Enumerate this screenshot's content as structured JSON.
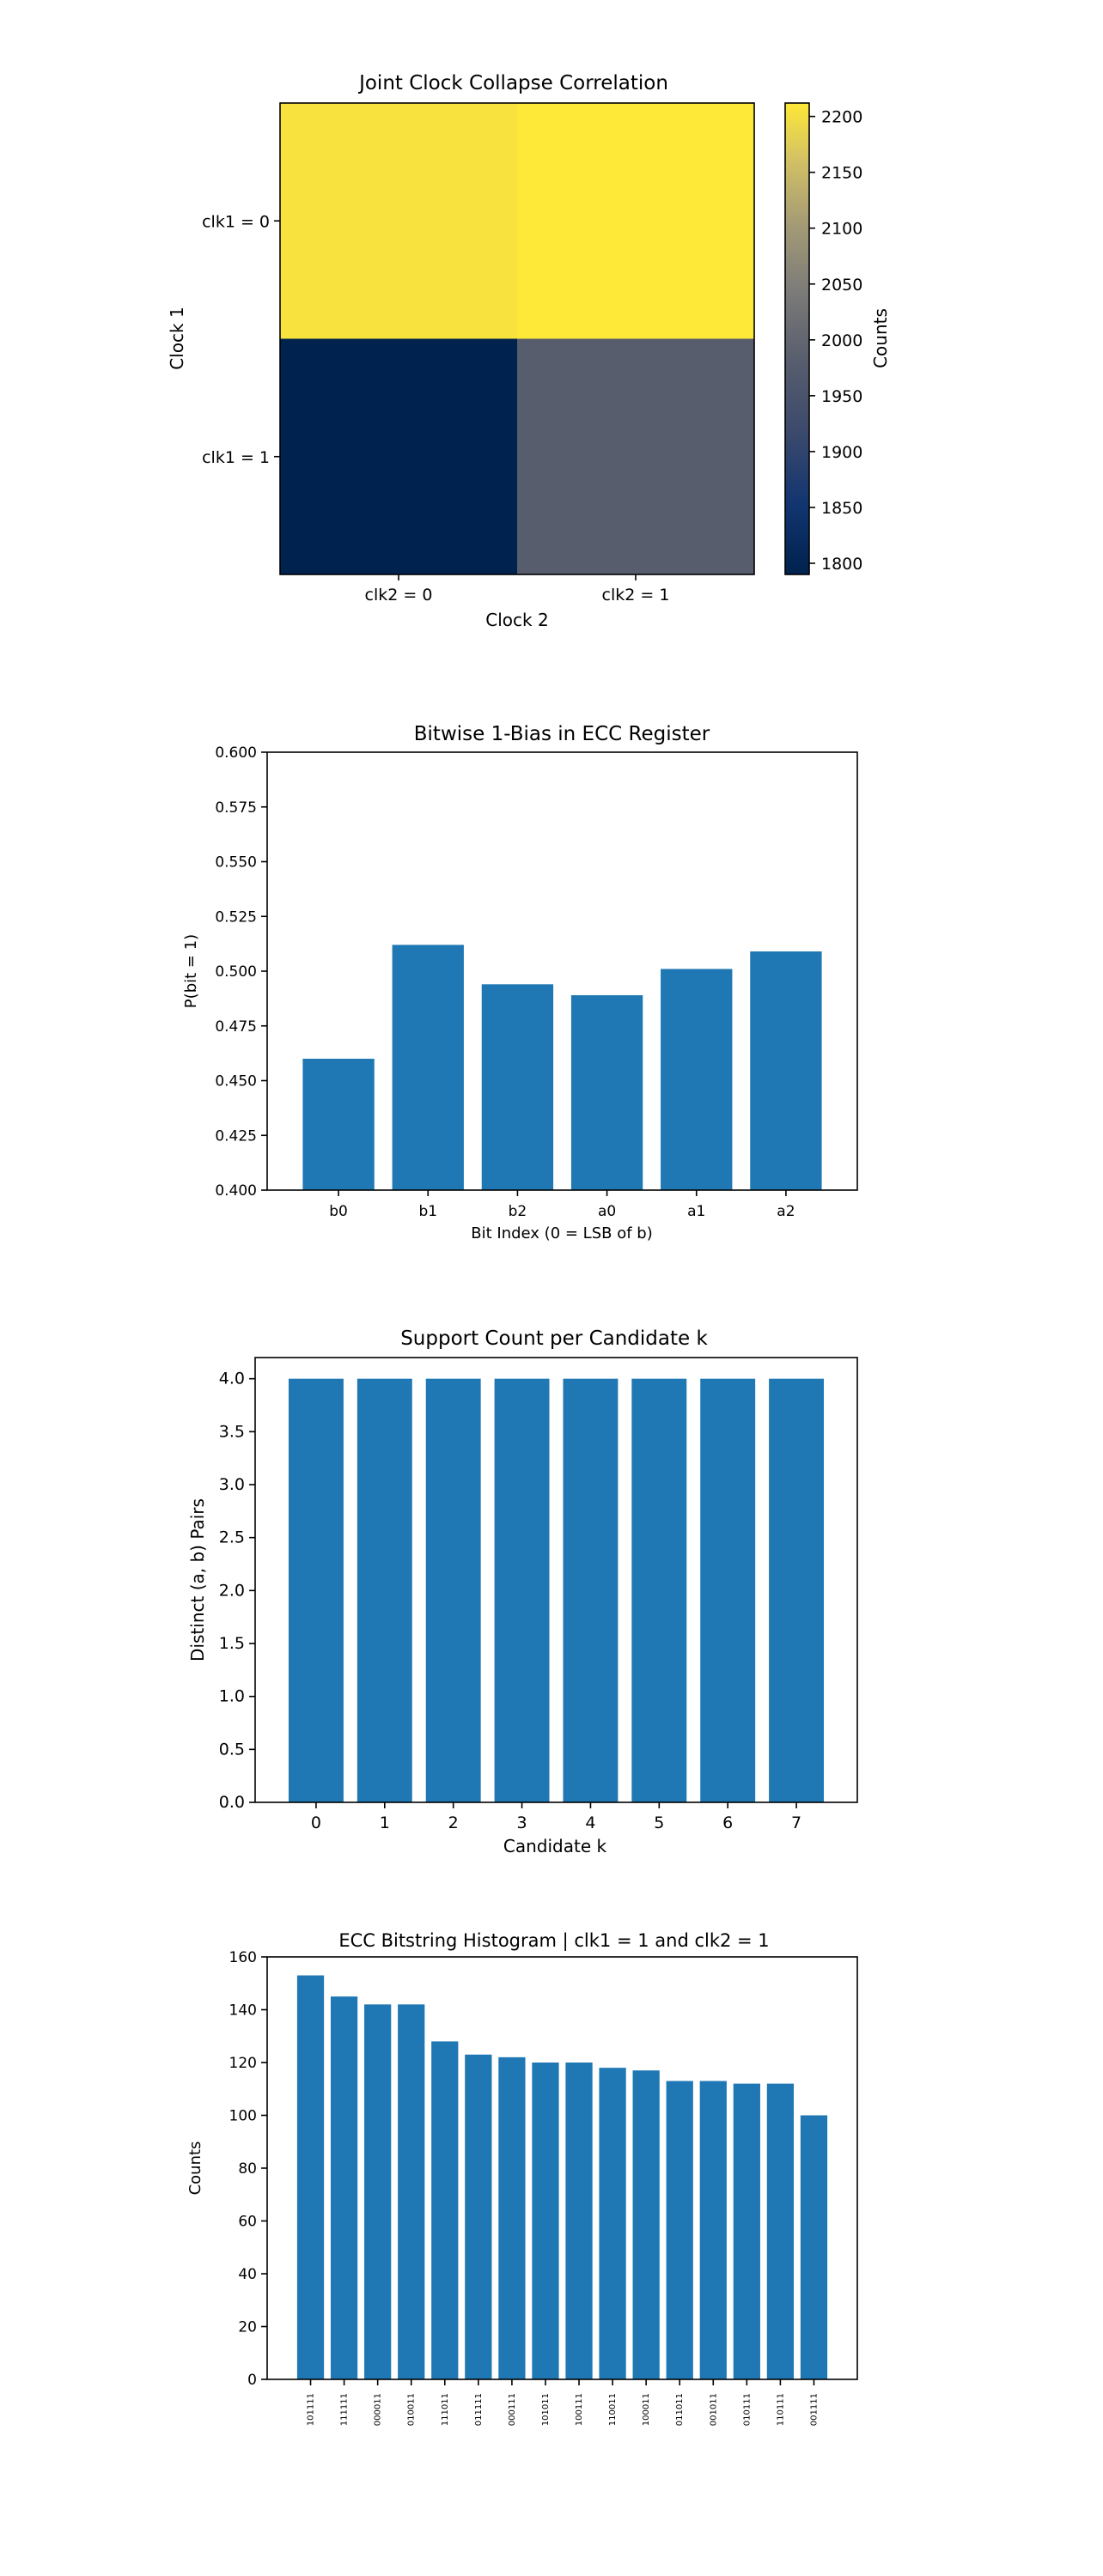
{
  "chart_data": [
    {
      "type": "heatmap",
      "title": "Joint Clock Collapse Correlation",
      "xlabel": "Clock 2",
      "ylabel": "Clock 1",
      "x_categories": [
        "clk2 = 0",
        "clk2 = 1"
      ],
      "y_categories": [
        "clk1 = 0",
        "clk1 = 1"
      ],
      "values": [
        [
          2205,
          2212
        ],
        [
          1790,
          1980
        ]
      ],
      "colorbar": {
        "label": "Counts",
        "colormap": "cividis",
        "range": [
          1790,
          2212
        ],
        "ticks": [
          1800,
          1850,
          1900,
          1950,
          2000,
          2050,
          2100,
          2150,
          2200
        ]
      }
    },
    {
      "type": "bar",
      "title": "Bitwise 1-Bias in ECC Register",
      "xlabel": "Bit Index (0 = LSB of b)",
      "ylabel": "P(bit = 1)",
      "categories": [
        "b0",
        "b1",
        "b2",
        "a0",
        "a1",
        "a2"
      ],
      "values": [
        0.46,
        0.512,
        0.494,
        0.489,
        0.501,
        0.509
      ],
      "ylim": [
        0.4,
        0.6
      ],
      "yticks": [
        "0.400",
        "0.425",
        "0.450",
        "0.475",
        "0.500",
        "0.525",
        "0.550",
        "0.575",
        "0.600"
      ],
      "color": "#1f77b4"
    },
    {
      "type": "bar",
      "title": "Support Count per Candidate k",
      "xlabel": "Candidate k",
      "ylabel": "Distinct (a, b) Pairs",
      "categories": [
        "0",
        "1",
        "2",
        "3",
        "4",
        "5",
        "6",
        "7"
      ],
      "values": [
        4,
        4,
        4,
        4,
        4,
        4,
        4,
        4
      ],
      "ylim": [
        0,
        4.2
      ],
      "yticks": [
        "0.0",
        "0.5",
        "1.0",
        "1.5",
        "2.0",
        "2.5",
        "3.0",
        "3.5",
        "4.0"
      ],
      "color": "#1f77b4"
    },
    {
      "type": "bar",
      "title": "ECC Bitstring Histogram | clk1 = 1 and clk2 = 1",
      "xlabel": "",
      "ylabel": "Counts",
      "categories": [
        "101111",
        "111111",
        "000011",
        "010011",
        "111011",
        "011111",
        "000111",
        "101011",
        "100111",
        "110011",
        "100011",
        "011011",
        "001011",
        "010111",
        "110111",
        "001111"
      ],
      "values": [
        153,
        145,
        142,
        142,
        128,
        123,
        122,
        120,
        120,
        118,
        117,
        113,
        113,
        112,
        112,
        100
      ],
      "ylim": [
        0,
        160
      ],
      "yticks": [
        "0",
        "20",
        "40",
        "60",
        "80",
        "100",
        "120",
        "140",
        "160"
      ],
      "color": "#1f77b4"
    }
  ]
}
